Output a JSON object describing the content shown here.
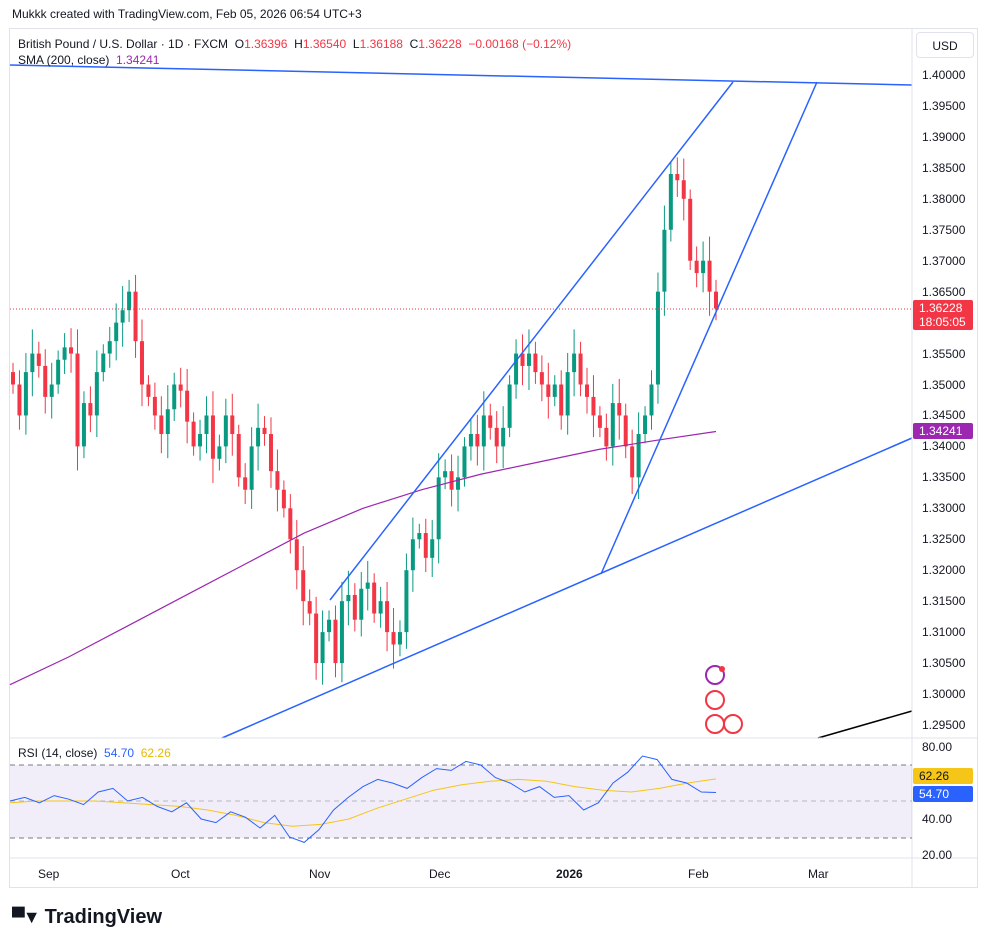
{
  "credit": "Mukkk created with TradingView.com, Feb 05, 2026 06:54 UTC+3",
  "legend": {
    "symbol": "British Pound / U.S. Dollar · 1D · FXCM",
    "o_label": "O",
    "o": "1.36396",
    "h_label": "H",
    "h": "1.36540",
    "l_label": "L",
    "l": "1.36188",
    "c_label": "C",
    "c": "1.36228",
    "change": "−0.00168 (−0.12%)",
    "sma_label": "SMA (200, close)",
    "sma_value": "1.34241"
  },
  "rsi_legend": {
    "label": "RSI (14, close)",
    "rsi": "54.70",
    "ma": "62.26"
  },
  "currency": "USD",
  "price_ticks": [
    "1.40000",
    "1.39500",
    "1.39000",
    "1.38500",
    "1.38000",
    "1.37500",
    "1.37000",
    "1.36500",
    "1.35500",
    "1.35000",
    "1.34500",
    "1.34000",
    "1.33500",
    "1.33000",
    "1.32500",
    "1.32000",
    "1.31500",
    "1.31000",
    "1.30500",
    "1.30000",
    "1.29500"
  ],
  "last_price": {
    "value": "1.36228",
    "countdown": "18:05:05"
  },
  "sma_tag": "1.34241",
  "rsi_ticks": [
    "80.00",
    "40.00",
    "20.00"
  ],
  "rsi_tags": {
    "ma": "62.26",
    "rsi": "54.70"
  },
  "time_labels": [
    "Sep",
    "Oct",
    "Nov",
    "Dec",
    "2026",
    "Feb",
    "Mar"
  ],
  "brand": "TradingView",
  "colors": {
    "up": "#089981",
    "down": "#f23645",
    "sma": "#9c27b0",
    "trend": "#2962ff",
    "rsi": "#2962ff",
    "rsi_ma": "#f5c518"
  },
  "chart_data": {
    "type": "candlestick",
    "closes": [
      1.35,
      1.345,
      1.352,
      1.355,
      1.353,
      1.348,
      1.35,
      1.354,
      1.356,
      1.355,
      1.34,
      1.347,
      1.345,
      1.352,
      1.355,
      1.357,
      1.36,
      1.362,
      1.365,
      1.357,
      1.35,
      1.348,
      1.345,
      1.342,
      1.346,
      1.35,
      1.349,
      1.344,
      1.34,
      1.342,
      1.345,
      1.338,
      1.34,
      1.345,
      1.342,
      1.335,
      1.333,
      1.34,
      1.343,
      1.342,
      1.336,
      1.333,
      1.33,
      1.325,
      1.32,
      1.315,
      1.313,
      1.305,
      1.31,
      1.312,
      1.305,
      1.315,
      1.316,
      1.312,
      1.317,
      1.318,
      1.313,
      1.315,
      1.31,
      1.308,
      1.31,
      1.32,
      1.325,
      1.326,
      1.322,
      1.325,
      1.335,
      1.336,
      1.333,
      1.335,
      1.34,
      1.342,
      1.34,
      1.345,
      1.343,
      1.34,
      1.343,
      1.35,
      1.355,
      1.353,
      1.355,
      1.352,
      1.35,
      1.348,
      1.35,
      1.345,
      1.352,
      1.355,
      1.35,
      1.348,
      1.345,
      1.343,
      1.34,
      1.347,
      1.345,
      1.34,
      1.335,
      1.342,
      1.345,
      1.35,
      1.365,
      1.375,
      1.384,
      1.383,
      1.38,
      1.37,
      1.368,
      1.37,
      1.365,
      1.36228
    ],
    "sma": [
      1.3015,
      1.306,
      1.311,
      1.316,
      1.321,
      1.326,
      1.33,
      1.333,
      1.3355,
      1.3375,
      1.3395,
      1.341,
      1.34241
    ],
    "rsi": [
      50,
      52,
      49,
      53,
      51,
      48,
      55,
      57,
      50,
      52,
      47,
      44,
      49,
      40,
      38,
      44,
      41,
      35,
      42,
      30,
      27,
      34,
      45,
      52,
      58,
      62,
      60,
      57,
      63,
      68,
      67,
      72,
      70,
      63,
      60,
      55,
      58,
      52,
      53,
      45,
      49,
      60,
      66,
      75,
      73,
      62,
      60,
      55,
      54.7
    ],
    "rsi_ma": [
      49,
      50,
      50,
      50,
      49,
      48,
      47,
      45,
      42,
      38,
      36,
      37,
      40,
      46,
      51,
      56,
      59,
      61,
      62,
      61,
      58,
      56,
      55,
      57,
      60,
      62.26
    ],
    "price_range": [
      1.293,
      1.402
    ],
    "rsi_range": [
      20,
      80
    ]
  }
}
